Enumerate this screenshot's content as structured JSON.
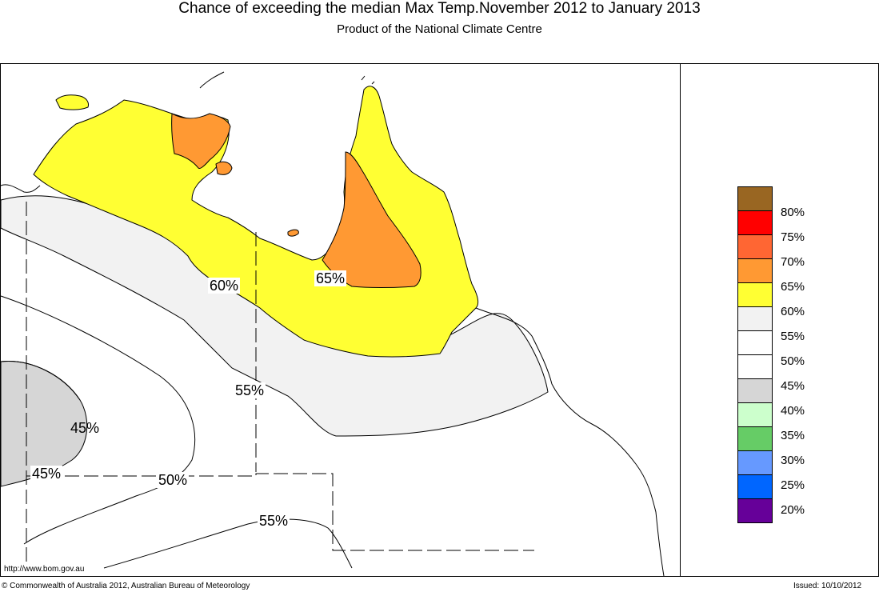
{
  "header": {
    "title": "Chance of exceeding the median Max Temp.November 2012 to January 2013",
    "subtitle": "Product of the National Climate Centre"
  },
  "footer": {
    "url": "http://www.bom.gov.au",
    "copyright": "© Commonwealth of Australia 2012, Australian Bureau of Meteorology",
    "issued": "Issued: 10/10/2012"
  },
  "map": {
    "region": "Northern Australia (NT and Queensland)",
    "contour_labels": [
      "60%",
      "65%",
      "55%",
      "45%",
      "45%",
      "50%",
      "55%"
    ],
    "colors": {
      "zone_45": "#d6d6d6",
      "zone_55": "#f2f2f2",
      "zone_60": "#ffff33",
      "zone_65": "#ff9933"
    }
  },
  "legend": {
    "labels": [
      "80%",
      "75%",
      "70%",
      "65%",
      "60%",
      "55%",
      "50%",
      "45%",
      "40%",
      "35%",
      "30%",
      "25%",
      "20%"
    ],
    "colors": [
      "#996622",
      "#ff0000",
      "#ff6633",
      "#ff9933",
      "#ffff33",
      "#f2f2f2",
      "#ffffff",
      "#ffffff",
      "#d6d6d6",
      "#ccffcc",
      "#66cc66",
      "#6699ff",
      "#0066ff",
      "#660099"
    ]
  }
}
